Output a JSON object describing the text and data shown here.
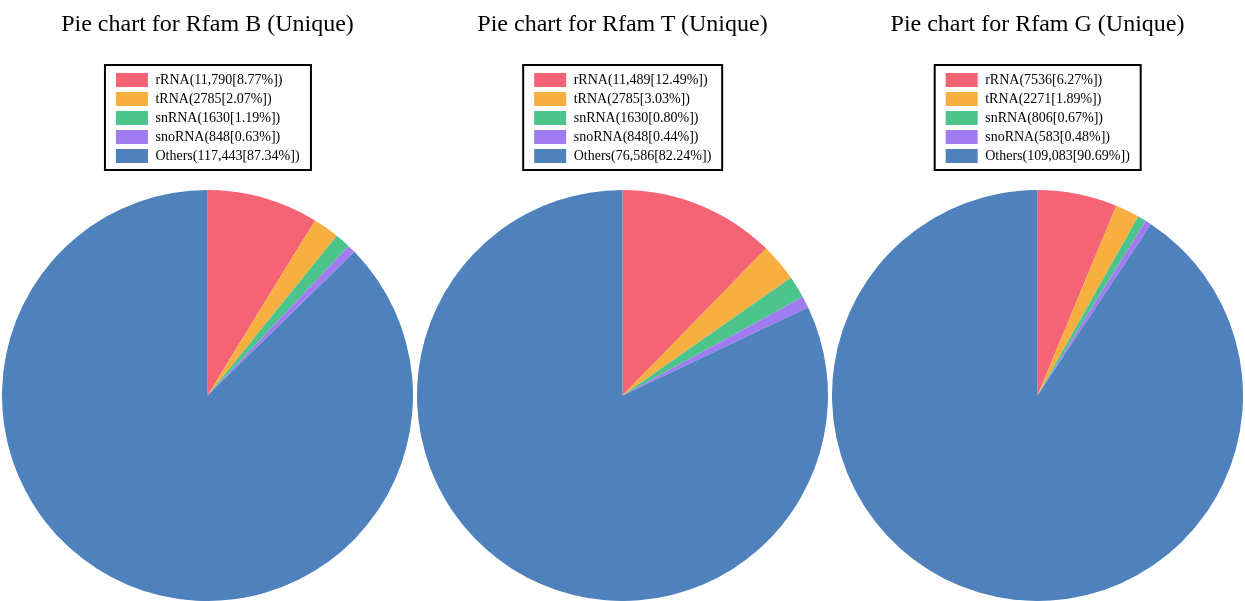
{
  "chart_data": [
    {
      "type": "pie",
      "title": "Pie chart for Rfam B (Unique)",
      "legend": "top",
      "categories": [
        "rRNA(11,790[8.77%])",
        "tRNA(2785[2.07%])",
        "snRNA(1630[1.19%])",
        "snoRNA(848[0.63%])",
        "Others(117,443[87.34%])"
      ],
      "values": [
        11790,
        2785,
        1630,
        848,
        117443
      ],
      "colors": [
        "#f46474",
        "#f7b040",
        "#4cc48c",
        "#a07cf0",
        "#4f81bd"
      ]
    },
    {
      "type": "pie",
      "title": "Pie chart for Rfam T (Unique)",
      "legend": "top",
      "categories": [
        "rRNA(11,489[12.49%])",
        "tRNA(2785[3.03%])",
        "snRNA(1630[0.80%])",
        "snoRNA(848[0.44%])",
        "Others(76,586[82.24%])"
      ],
      "values": [
        11489,
        2785,
        1630,
        848,
        76586
      ],
      "colors": [
        "#f46474",
        "#f7b040",
        "#4cc48c",
        "#a07cf0",
        "#4f81bd"
      ]
    },
    {
      "type": "pie",
      "title": "Pie chart for Rfam G (Unique)",
      "legend": "top",
      "categories": [
        "rRNA(7536[6.27%])",
        "tRNA(2271[1.89%])",
        "snRNA(806[0.67%])",
        "snoRNA(583[0.48%])",
        "Others(109,083[90.69%])"
      ],
      "values": [
        7536,
        2271,
        806,
        583,
        109083
      ],
      "colors": [
        "#f46474",
        "#f7b040",
        "#4cc48c",
        "#a07cf0",
        "#4f81bd"
      ]
    }
  ]
}
